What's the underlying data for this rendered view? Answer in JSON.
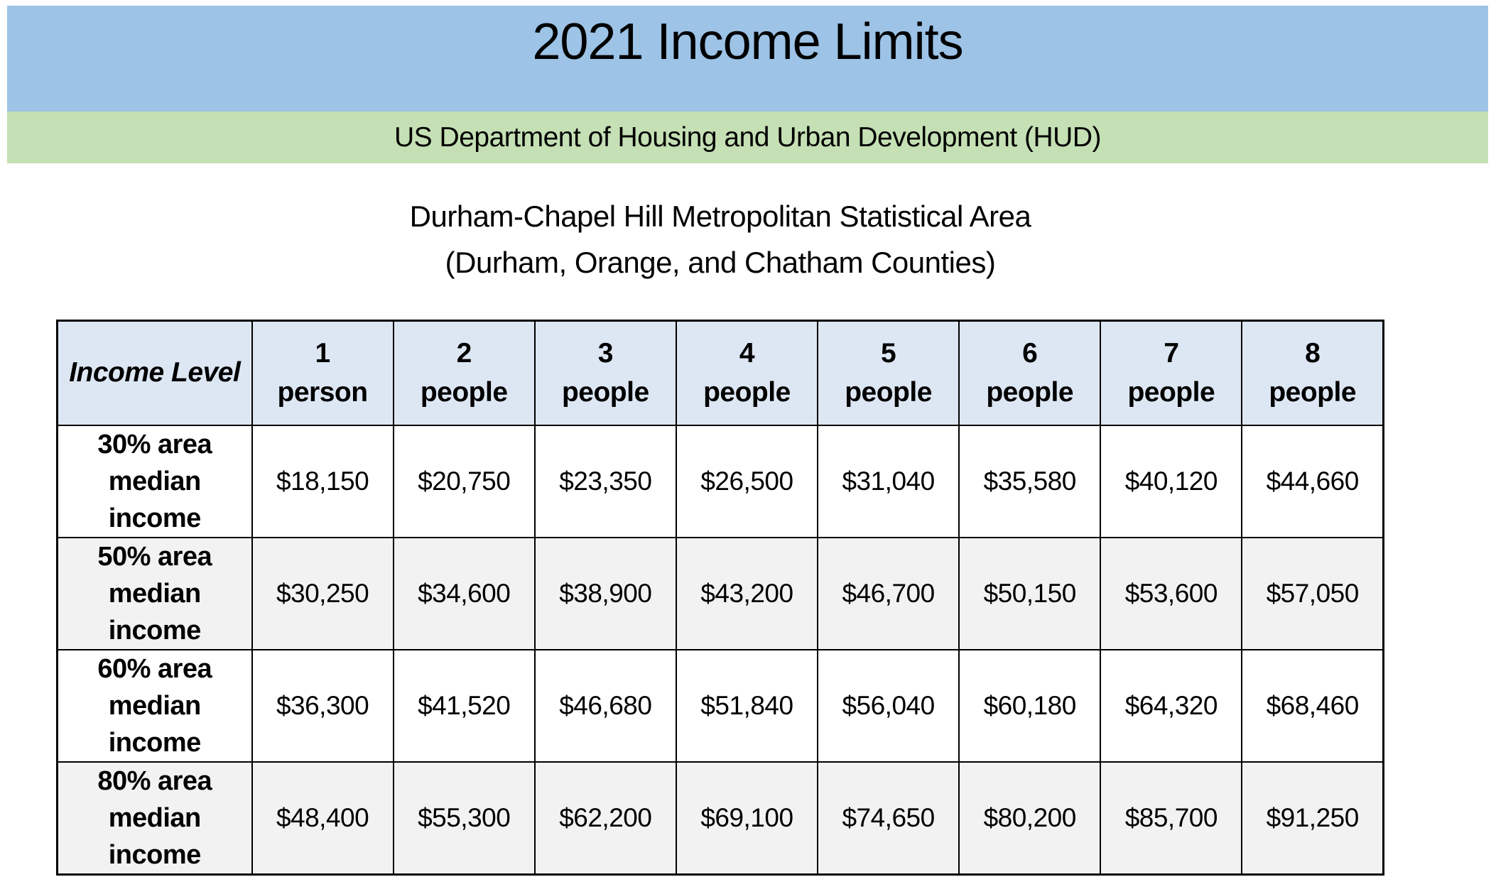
{
  "banner": {
    "title": "2021 Income Limits",
    "department": "US Department of Housing and Urban Development (HUD)"
  },
  "area_heading": {
    "line1": "Durham-Chapel Hill Metropolitan Statistical Area",
    "line2": "(Durham, Orange, and Chatham Counties)"
  },
  "colors": {
    "title_band": "#9dc3e6",
    "department_band": "#c5e0b4",
    "table_header_fill": "#dde7f3",
    "row_stripe_fill": "#f2f2f2",
    "border": "#000000",
    "text": "#000000"
  },
  "table": {
    "corner_header": "Income Level",
    "columns": [
      {
        "count": "1",
        "unit": "person"
      },
      {
        "count": "2",
        "unit": "people"
      },
      {
        "count": "3",
        "unit": "people"
      },
      {
        "count": "4",
        "unit": "people"
      },
      {
        "count": "5",
        "unit": "people"
      },
      {
        "count": "6",
        "unit": "people"
      },
      {
        "count": "7",
        "unit": "people"
      },
      {
        "count": "8",
        "unit": "people"
      }
    ],
    "rows": [
      {
        "label": "30% area\nmedian\nincome",
        "values": [
          "$18,150",
          "$20,750",
          "$23,350",
          "$26,500",
          "$31,040",
          "$35,580",
          "$40,120",
          "$44,660"
        ]
      },
      {
        "label": "50% area\nmedian\nincome",
        "values": [
          "$30,250",
          "$34,600",
          "$38,900",
          "$43,200",
          "$46,700",
          "$50,150",
          "$53,600",
          "$57,050"
        ]
      },
      {
        "label": "60% area\nmedian\nincome",
        "values": [
          "$36,300",
          "$41,520",
          "$46,680",
          "$51,840",
          "$56,040",
          "$60,180",
          "$64,320",
          "$68,460"
        ]
      },
      {
        "label": "80% area\nmedian\nincome",
        "values": [
          "$48,400",
          "$55,300",
          "$62,200",
          "$69,100",
          "$74,650",
          "$80,200",
          "$85,700",
          "$91,250"
        ]
      }
    ]
  }
}
